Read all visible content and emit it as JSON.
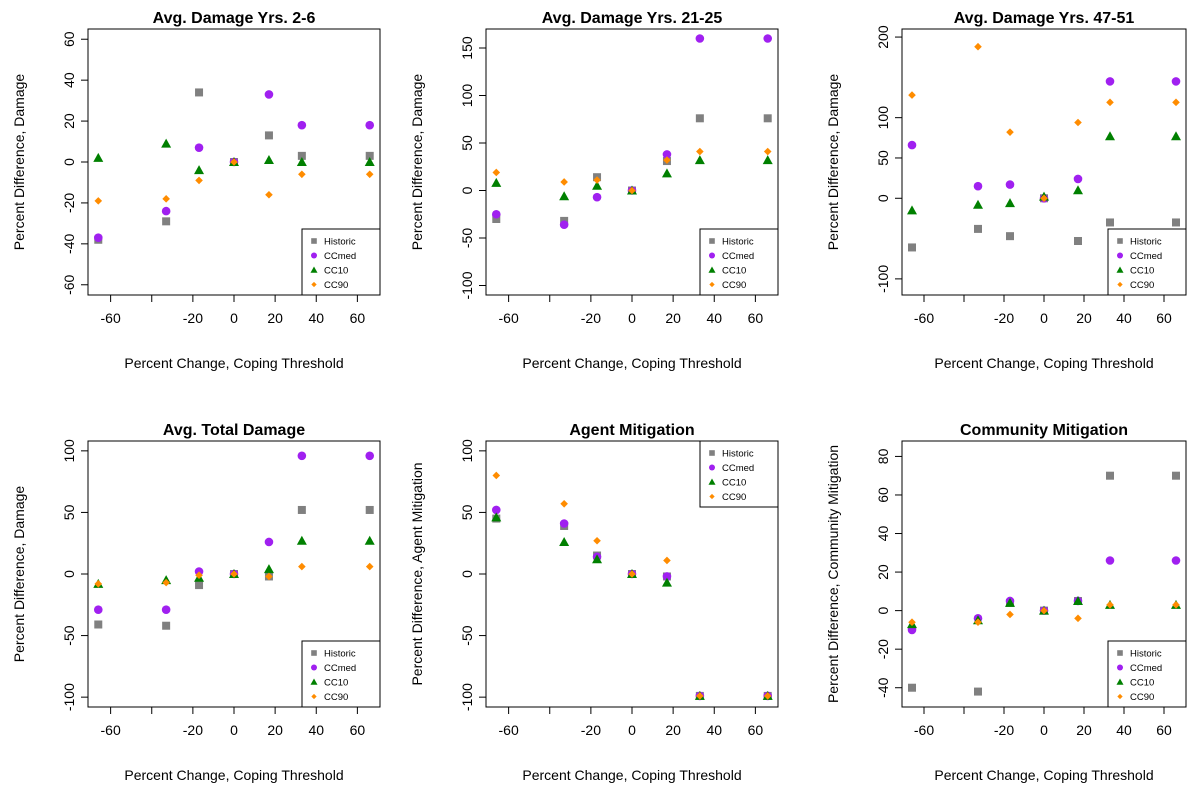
{
  "chart_data": [
    {
      "type": "scatter",
      "title": "Avg. Damage Yrs. 2-6",
      "xlabel": "Percent Change, Coping Threshold",
      "ylabel": "Percent Difference, Damage",
      "x": [
        -66,
        -33,
        -17,
        0,
        17,
        33,
        66
      ],
      "xlim": [
        -71,
        71
      ],
      "xticks": [
        -60,
        -20,
        0,
        20,
        40,
        60
      ],
      "ylim": [
        -65,
        65
      ],
      "yticks": [
        -60,
        -40,
        -20,
        0,
        20,
        40,
        60
      ],
      "legend": "bottom-right",
      "series": [
        {
          "name": "Historic",
          "color": "#808080",
          "marker": "square",
          "values": [
            -38,
            -29,
            34,
            0,
            13,
            3,
            3
          ]
        },
        {
          "name": "CCmed",
          "color": "#a020f0",
          "marker": "circle",
          "values": [
            -37,
            -24,
            7,
            0,
            33,
            18,
            18
          ]
        },
        {
          "name": "CC10",
          "color": "#008000",
          "marker": "triangle",
          "values": [
            2,
            9,
            -4,
            0,
            1,
            0,
            0
          ]
        },
        {
          "name": "CC90",
          "color": "#ff8c00",
          "marker": "diamond",
          "values": [
            -19,
            -18,
            -9,
            0,
            -16,
            -6,
            -6
          ]
        }
      ]
    },
    {
      "type": "scatter",
      "title": "Avg. Damage Yrs. 21-25",
      "xlabel": "Percent Change, Coping Threshold",
      "ylabel": "Percent Difference, Damage",
      "x": [
        -66,
        -33,
        -17,
        0,
        17,
        33,
        66
      ],
      "xlim": [
        -71,
        71
      ],
      "xticks": [
        -60,
        -20,
        0,
        20,
        40,
        60
      ],
      "ylim": [
        -110,
        170
      ],
      "yticks": [
        -100,
        -50,
        0,
        50,
        100,
        150
      ],
      "legend": "bottom-right",
      "series": [
        {
          "name": "Historic",
          "color": "#808080",
          "marker": "square",
          "values": [
            -30,
            -32,
            14,
            0,
            31,
            76,
            76
          ]
        },
        {
          "name": "CCmed",
          "color": "#a020f0",
          "marker": "circle",
          "values": [
            -25,
            -36,
            -7,
            0,
            38,
            160,
            160
          ]
        },
        {
          "name": "CC10",
          "color": "#008000",
          "marker": "triangle",
          "values": [
            8,
            -6,
            5,
            0,
            18,
            32,
            32
          ]
        },
        {
          "name": "CC90",
          "color": "#ff8c00",
          "marker": "diamond",
          "values": [
            19,
            9,
            11,
            0,
            32,
            41,
            41
          ]
        }
      ]
    },
    {
      "type": "scatter",
      "title": "Avg. Damage Yrs. 47-51",
      "xlabel": "Percent Change, Coping Threshold",
      "ylabel": "Percent Difference, Damage",
      "x": [
        -66,
        -33,
        -17,
        0,
        17,
        33,
        66
      ],
      "xlim": [
        -71,
        71
      ],
      "xticks": [
        -60,
        -20,
        0,
        20,
        40,
        60
      ],
      "ylim": [
        -120,
        210
      ],
      "yticks": [
        -100,
        0,
        50,
        100,
        200
      ],
      "legend": "bottom-right",
      "series": [
        {
          "name": "Historic",
          "color": "#808080",
          "marker": "square",
          "values": [
            -61,
            -38,
            -47,
            0,
            -53,
            -30,
            -30
          ]
        },
        {
          "name": "CCmed",
          "color": "#a020f0",
          "marker": "circle",
          "values": [
            66,
            15,
            17,
            0,
            24,
            145,
            145
          ]
        },
        {
          "name": "CC10",
          "color": "#008000",
          "marker": "triangle",
          "values": [
            -15,
            -8,
            -6,
            2,
            10,
            77,
            77
          ]
        },
        {
          "name": "CC90",
          "color": "#ff8c00",
          "marker": "diamond",
          "values": [
            128,
            188,
            82,
            0,
            94,
            119,
            119
          ]
        }
      ]
    },
    {
      "type": "scatter",
      "title": "Avg. Total Damage",
      "xlabel": "Percent Change, Coping Threshold",
      "ylabel": "Percent Difference, Damage",
      "x": [
        -66,
        -33,
        -17,
        0,
        17,
        33,
        66
      ],
      "xlim": [
        -71,
        71
      ],
      "xticks": [
        -60,
        -20,
        0,
        20,
        40,
        60
      ],
      "ylim": [
        -108,
        108
      ],
      "yticks": [
        -100,
        -50,
        0,
        50,
        100
      ],
      "legend": "bottom-right",
      "series": [
        {
          "name": "Historic",
          "color": "#808080",
          "marker": "square",
          "values": [
            -41,
            -42,
            -9,
            0,
            -2,
            52,
            52
          ]
        },
        {
          "name": "CCmed",
          "color": "#a020f0",
          "marker": "circle",
          "values": [
            -29,
            -29,
            2,
            0,
            26,
            96,
            96
          ]
        },
        {
          "name": "CC10",
          "color": "#008000",
          "marker": "triangle",
          "values": [
            -8,
            -5,
            -3,
            0,
            4,
            27,
            27
          ]
        },
        {
          "name": "CC90",
          "color": "#ff8c00",
          "marker": "diamond",
          "values": [
            -8,
            -7,
            -1,
            0,
            -2,
            6,
            6
          ]
        }
      ]
    },
    {
      "type": "scatter",
      "title": "Agent Mitigation",
      "xlabel": "Percent Change, Coping Threshold",
      "ylabel": "Percent Difference, Agent Mitigation",
      "x": [
        -66,
        -33,
        -17,
        0,
        17,
        33,
        66
      ],
      "xlim": [
        -71,
        71
      ],
      "xticks": [
        -60,
        -20,
        0,
        20,
        40,
        60
      ],
      "ylim": [
        -108,
        108
      ],
      "yticks": [
        -100,
        -50,
        0,
        50,
        100
      ],
      "legend": "top-right",
      "series": [
        {
          "name": "Historic",
          "color": "#808080",
          "marker": "square",
          "values": [
            45,
            39,
            15,
            0,
            -2,
            -99,
            -99
          ]
        },
        {
          "name": "CCmed",
          "color": "#a020f0",
          "marker": "circle",
          "values": [
            52,
            41,
            14,
            0,
            -2,
            -99,
            -99
          ]
        },
        {
          "name": "CC10",
          "color": "#008000",
          "marker": "triangle",
          "values": [
            46,
            26,
            12,
            0,
            -7,
            -99,
            -99
          ]
        },
        {
          "name": "CC90",
          "color": "#ff8c00",
          "marker": "diamond",
          "values": [
            80,
            57,
            27,
            0,
            11,
            -99,
            -99
          ]
        }
      ]
    },
    {
      "type": "scatter",
      "title": "Community Mitigation",
      "xlabel": "Percent Change, Coping Threshold",
      "ylabel": "Percent Difference, Community Mitigation",
      "x": [
        -66,
        -33,
        -17,
        0,
        17,
        33,
        66
      ],
      "xlim": [
        -71,
        71
      ],
      "xticks": [
        -60,
        -20,
        0,
        20,
        40,
        60
      ],
      "ylim": [
        -50,
        88
      ],
      "yticks": [
        -40,
        -20,
        0,
        20,
        40,
        60,
        80
      ],
      "legend": "bottom-right",
      "series": [
        {
          "name": "Historic",
          "color": "#808080",
          "marker": "square",
          "values": [
            -40,
            -42,
            4,
            0,
            5,
            70,
            70
          ]
        },
        {
          "name": "CCmed",
          "color": "#a020f0",
          "marker": "circle",
          "values": [
            -10,
            -4,
            5,
            0,
            5,
            26,
            26
          ]
        },
        {
          "name": "CC10",
          "color": "#008000",
          "marker": "triangle",
          "values": [
            -7,
            -5,
            4,
            0,
            5,
            3,
            3
          ]
        },
        {
          "name": "CC90",
          "color": "#ff8c00",
          "marker": "diamond",
          "values": [
            -6,
            -6,
            -2,
            0,
            -4,
            3,
            3
          ]
        }
      ]
    }
  ]
}
